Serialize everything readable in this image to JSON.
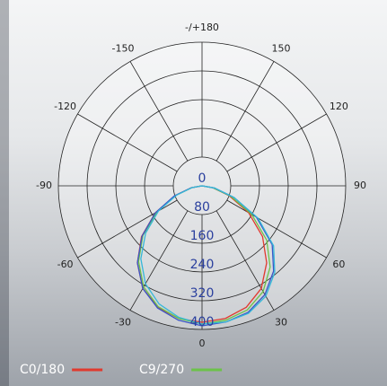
{
  "chart_data": {
    "type": "polar",
    "x": [
      -90,
      -80,
      -70,
      -60,
      -50,
      -40,
      -30,
      -20,
      -10,
      0,
      10,
      20,
      30,
      40,
      50,
      60,
      70,
      80,
      90
    ],
    "xlim": [
      -180,
      180
    ],
    "xticks": [
      0,
      30,
      60,
      90,
      120,
      150,
      {
        "value": 180,
        "label": "-/+180"
      },
      -150,
      -120,
      -90,
      -60,
      -30
    ],
    "ylim": [
      0,
      400
    ],
    "yticks": [
      0,
      80,
      160,
      240,
      320,
      400
    ],
    "grid": true,
    "series": [
      {
        "name": "C0/180",
        "color": "#e03a2f",
        "values": [
          0,
          30,
          80,
          150,
          220,
          280,
          330,
          360,
          375,
          380,
          375,
          360,
          330,
          280,
          220,
          150,
          80,
          30,
          0
        ]
      },
      {
        "name": "C9/270",
        "color": "#6cc24a",
        "values": [
          0,
          28,
          78,
          145,
          215,
          275,
          325,
          358,
          375,
          385,
          380,
          368,
          340,
          295,
          235,
          160,
          85,
          30,
          0
        ]
      },
      {
        "color": "#3a56c8",
        "values": [
          0,
          30,
          82,
          150,
          218,
          280,
          330,
          362,
          380,
          390,
          385,
          375,
          350,
          310,
          255,
          175,
          95,
          35,
          0
        ]
      },
      {
        "color": "#35b8d8",
        "values": [
          0,
          28,
          75,
          140,
          205,
          265,
          315,
          350,
          372,
          385,
          385,
          378,
          355,
          315,
          260,
          180,
          95,
          35,
          0
        ]
      }
    ]
  }
}
